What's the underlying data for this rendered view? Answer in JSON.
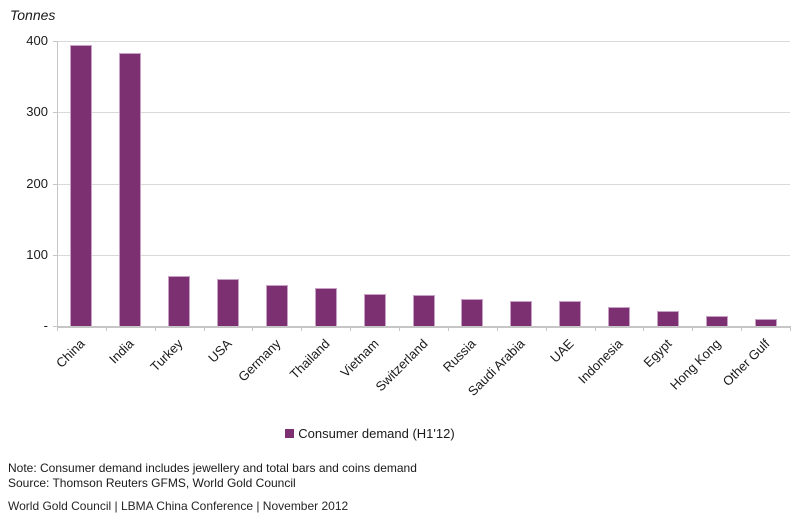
{
  "chart_data": {
    "type": "bar",
    "title": "",
    "ylabel": "Tonnes",
    "xlabel": "",
    "categories": [
      "China",
      "India",
      "Turkey",
      "USA",
      "Germany",
      "Thailand",
      "Vietnam",
      "Switzerland",
      "Russia",
      "Saudi Arabia",
      "UAE",
      "Indonesia",
      "Egypt",
      "Hong Kong",
      "Other Gulf"
    ],
    "values": [
      395,
      383,
      70,
      66,
      57,
      54,
      45,
      43,
      38,
      35,
      35,
      27,
      21,
      14,
      10
    ],
    "ylim": [
      0,
      400
    ],
    "yticks": [
      {
        "value": 400,
        "label": "400"
      },
      {
        "value": 300,
        "label": "300"
      },
      {
        "value": 200,
        "label": "200"
      },
      {
        "value": 100,
        "label": "100"
      },
      {
        "value": 0,
        "label": "-"
      }
    ],
    "grid": true,
    "legend": [
      {
        "label": "Consumer demand (H1'12)",
        "color": "#7c3072"
      }
    ],
    "legend_position": "bottom-center",
    "bar_color": "#7c3072",
    "bar_border_color": "#c7a2c5",
    "axis_color": "#c6c6c6",
    "gridline_color": "#d9d9d9"
  },
  "notes": {
    "note": "Note: Consumer demand includes jewellery and total bars and coins demand",
    "source": "Source: Thomson Reuters GFMS, World Gold Council"
  },
  "footer": "World Gold Council  |  LBMA China Conference |  November 2012"
}
